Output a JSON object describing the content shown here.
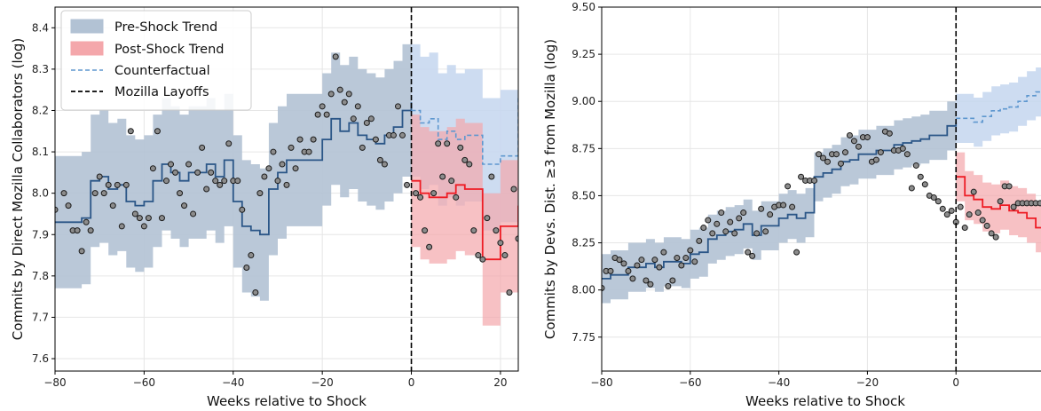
{
  "chart_data": [
    {
      "type": "line",
      "xlabel": "Weeks relative to Shock",
      "ylabel": "Commits by Direct Mozilla Collaborators (log)",
      "xlim": [
        -80,
        24
      ],
      "ylim": [
        7.57,
        8.45
      ],
      "xticks": [
        -80,
        -60,
        -40,
        -20,
        0,
        20
      ],
      "xtick_labels": [
        "−80",
        "−60",
        "−40",
        "−20",
        "0",
        "20"
      ],
      "yticks": [
        7.6,
        7.7,
        7.8,
        7.9,
        8.0,
        8.1,
        8.2,
        8.3,
        8.4
      ],
      "ytick_labels": [
        "7.6",
        "7.7",
        "7.8",
        "7.9",
        "8.0",
        "8.1",
        "8.2",
        "8.3",
        "8.4"
      ],
      "grid": true,
      "legend_position": "top-left",
      "legend": [
        "Pre-Shock Trend",
        "Post-Shock Trend",
        "Counterfactual",
        "Mozilla Layoffs"
      ],
      "shock_week": 0,
      "band_halfwidth": 0.16,
      "pre_trend": {
        "x": [
          -80,
          -78,
          -76,
          -74,
          -72,
          -70,
          -68,
          -66,
          -64,
          -62,
          -60,
          -58,
          -56,
          -54,
          -52,
          -50,
          -48,
          -46,
          -44,
          -42,
          -40,
          -38,
          -36,
          -34,
          -32,
          -30,
          -28,
          -26,
          -24,
          -22,
          -20,
          -18,
          -16,
          -14,
          -12,
          -10,
          -8,
          -6,
          -4,
          -2,
          0
        ],
        "y": [
          7.93,
          7.93,
          7.93,
          7.94,
          8.03,
          8.04,
          8.01,
          8.02,
          7.98,
          7.97,
          7.98,
          8.03,
          8.07,
          8.05,
          8.03,
          8.05,
          8.05,
          8.07,
          8.04,
          8.08,
          7.98,
          7.92,
          7.91,
          7.9,
          8.01,
          8.05,
          8.08,
          8.08,
          8.08,
          8.08,
          8.13,
          8.18,
          8.15,
          8.17,
          8.14,
          8.13,
          8.12,
          8.14,
          8.16,
          8.2,
          8.22
        ]
      },
      "post_trend": {
        "x": [
          0,
          2,
          4,
          6,
          8,
          10,
          12,
          14,
          16,
          18,
          20,
          22,
          24
        ],
        "y": [
          8.03,
          8.0,
          7.99,
          7.99,
          8.0,
          8.02,
          8.01,
          8.01,
          7.84,
          7.84,
          7.92,
          7.92,
          7.97
        ],
        "band_halfwidth": 0.16
      },
      "counterfactual": {
        "x": [
          0,
          2,
          4,
          6,
          8,
          10,
          12,
          14,
          16,
          18,
          20,
          22,
          24
        ],
        "y": [
          8.2,
          8.17,
          8.18,
          8.13,
          8.15,
          8.13,
          8.14,
          8.14,
          8.07,
          8.07,
          8.09,
          8.09,
          8.23
        ]
      },
      "points": {
        "x": [
          -80,
          -78,
          -77,
          -76,
          -75,
          -74,
          -73,
          -72,
          -71,
          -70,
          -69,
          -68,
          -67,
          -66,
          -65,
          -64,
          -63,
          -62,
          -61,
          -60,
          -59,
          -58,
          -57,
          -56,
          -55,
          -54,
          -53,
          -52,
          -51,
          -50,
          -49,
          -48,
          -47,
          -46,
          -45,
          -44,
          -43,
          -42,
          -41,
          -40,
          -39,
          -38,
          -37,
          -36,
          -35,
          -34,
          -33,
          -32,
          -31,
          -30,
          -29,
          -28,
          -27,
          -26,
          -25,
          -24,
          -23,
          -22,
          -21,
          -20,
          -19,
          -18,
          -17,
          -16,
          -15,
          -14,
          -13,
          -12,
          -11,
          -10,
          -9,
          -8,
          -7,
          -6,
          -5,
          -4,
          -3,
          -2,
          -1,
          1,
          2,
          3,
          4,
          5,
          6,
          7,
          8,
          9,
          10,
          11,
          12,
          13,
          14,
          15,
          16,
          17,
          18,
          19,
          20,
          21,
          22,
          23,
          24
        ],
        "y": [
          7.96,
          8.0,
          7.97,
          7.91,
          7.91,
          7.86,
          7.93,
          7.91,
          8.0,
          8.04,
          8.0,
          8.02,
          7.97,
          8.02,
          7.92,
          8.02,
          8.15,
          7.95,
          7.94,
          7.92,
          7.94,
          8.06,
          8.15,
          7.94,
          8.03,
          8.07,
          8.05,
          8.0,
          7.97,
          8.07,
          7.95,
          8.05,
          8.11,
          8.01,
          8.05,
          8.03,
          8.02,
          8.03,
          8.12,
          8.03,
          8.03,
          7.96,
          7.82,
          7.85,
          7.76,
          8.0,
          8.04,
          8.06,
          8.1,
          8.03,
          8.07,
          8.02,
          8.11,
          8.06,
          8.13,
          8.1,
          8.1,
          8.13,
          8.19,
          8.21,
          8.19,
          8.24,
          8.33,
          8.25,
          8.22,
          8.24,
          8.18,
          8.21,
          8.11,
          8.17,
          8.18,
          8.13,
          8.08,
          8.07,
          8.14,
          8.14,
          8.21,
          8.14,
          8.02,
          8.0,
          7.99,
          7.91,
          7.87,
          8.0,
          8.12,
          8.04,
          8.12,
          8.03,
          7.99,
          8.11,
          8.08,
          8.07,
          7.91,
          7.85,
          7.84,
          7.94,
          8.04,
          7.91,
          7.88,
          7.85,
          7.76,
          8.01,
          7.89
        ]
      }
    },
    {
      "type": "line",
      "xlabel": "Weeks relative to Shock",
      "ylabel": "Commits by Devs. Dist. ≥3 from Mozilla (log)",
      "xlim": [
        -80,
        24
      ],
      "ylim": [
        7.57,
        9.5
      ],
      "xticks": [
        -80,
        -60,
        -40,
        -20,
        0,
        20
      ],
      "xtick_labels": [
        "−80",
        "−60",
        "−40",
        "−20",
        "0",
        "20"
      ],
      "yticks": [
        7.75,
        8.0,
        8.25,
        8.5,
        8.75,
        9.0,
        9.25,
        9.5
      ],
      "ytick_labels": [
        "7.75",
        "8.00",
        "8.25",
        "8.50",
        "8.75",
        "9.00",
        "9.25",
        "9.50"
      ],
      "grid": true,
      "shock_week": 0,
      "band_halfwidth": 0.13,
      "pre_trend": {
        "x": [
          -80,
          -78,
          -76,
          -74,
          -72,
          -70,
          -68,
          -66,
          -64,
          -62,
          -60,
          -58,
          -56,
          -54,
          -52,
          -50,
          -48,
          -46,
          -44,
          -42,
          -40,
          -38,
          -36,
          -34,
          -32,
          -30,
          -28,
          -26,
          -24,
          -22,
          -20,
          -18,
          -16,
          -14,
          -12,
          -10,
          -8,
          -6,
          -4,
          -2,
          0
        ],
        "y": [
          8.06,
          8.08,
          8.08,
          8.12,
          8.12,
          8.14,
          8.12,
          8.15,
          8.15,
          8.14,
          8.19,
          8.2,
          8.27,
          8.29,
          8.31,
          8.32,
          8.35,
          8.29,
          8.34,
          8.34,
          8.38,
          8.4,
          8.38,
          8.41,
          8.6,
          8.62,
          8.64,
          8.68,
          8.69,
          8.72,
          8.72,
          8.74,
          8.74,
          8.77,
          8.78,
          8.79,
          8.8,
          8.82,
          8.82,
          8.87,
          8.89
        ]
      },
      "post_trend": {
        "x": [
          0,
          2,
          4,
          6,
          8,
          10,
          12,
          14,
          16,
          18,
          20,
          22,
          24
        ],
        "y": [
          8.6,
          8.5,
          8.48,
          8.44,
          8.43,
          8.45,
          8.42,
          8.41,
          8.38,
          8.33,
          8.47,
          8.45,
          8.48
        ],
        "band_halfwidth": 0.13
      },
      "counterfactual": {
        "x": [
          0,
          2,
          4,
          6,
          8,
          10,
          12,
          14,
          16,
          18,
          20,
          22,
          24
        ],
        "y": [
          8.91,
          8.91,
          8.89,
          8.92,
          8.95,
          8.96,
          8.97,
          9.0,
          9.03,
          9.05,
          9.09,
          9.14,
          9.2
        ]
      },
      "points": {
        "x": [
          -80,
          -79,
          -78,
          -77,
          -76,
          -75,
          -74,
          -73,
          -72,
          -71,
          -70,
          -69,
          -68,
          -67,
          -66,
          -65,
          -64,
          -63,
          -62,
          -61,
          -60,
          -59,
          -58,
          -57,
          -56,
          -55,
          -54,
          -53,
          -52,
          -51,
          -50,
          -49,
          -48,
          -47,
          -46,
          -45,
          -44,
          -43,
          -42,
          -41,
          -40,
          -39,
          -38,
          -37,
          -36,
          -35,
          -34,
          -33,
          -32,
          -31,
          -30,
          -29,
          -28,
          -27,
          -26,
          -25,
          -24,
          -23,
          -22,
          -21,
          -20,
          -19,
          -18,
          -17,
          -16,
          -15,
          -14,
          -13,
          -12,
          -11,
          -10,
          -9,
          -8,
          -7,
          -6,
          -5,
          -4,
          -3,
          -2,
          -1,
          0,
          1,
          2,
          3,
          4,
          5,
          6,
          7,
          8,
          9,
          10,
          11,
          12,
          13,
          14,
          15,
          16,
          17,
          18,
          19,
          20,
          21,
          22,
          23,
          24
        ],
        "y": [
          8.01,
          8.1,
          8.1,
          8.17,
          8.16,
          8.14,
          8.1,
          8.06,
          8.13,
          8.16,
          8.05,
          8.03,
          8.16,
          8.12,
          8.2,
          8.02,
          8.05,
          8.17,
          8.13,
          8.17,
          8.21,
          8.15,
          8.26,
          8.33,
          8.37,
          8.3,
          8.35,
          8.41,
          8.31,
          8.36,
          8.3,
          8.38,
          8.41,
          8.2,
          8.18,
          8.3,
          8.43,
          8.31,
          8.4,
          8.44,
          8.45,
          8.45,
          8.55,
          8.44,
          8.2,
          8.6,
          8.58,
          8.58,
          8.58,
          8.72,
          8.7,
          8.68,
          8.72,
          8.72,
          8.67,
          8.73,
          8.82,
          8.79,
          8.76,
          8.81,
          8.81,
          8.68,
          8.69,
          8.73,
          8.84,
          8.83,
          8.74,
          8.74,
          8.75,
          8.72,
          8.54,
          8.66,
          8.6,
          8.56,
          8.5,
          8.49,
          8.47,
          8.43,
          8.4,
          8.42,
          8.36,
          8.44,
          8.33,
          8.4,
          8.52,
          8.41,
          8.37,
          8.34,
          8.3,
          8.28,
          8.47,
          8.55,
          8.55,
          8.44,
          8.46,
          8.46,
          8.46,
          8.46,
          8.46,
          8.46,
          8.46,
          8.46,
          8.46,
          8.46,
          8.46
        ]
      }
    }
  ],
  "colors": {
    "pre_band": "#b2c2d4",
    "pre_line": "#2b5687",
    "post_band": "#f4a7ab",
    "post_line": "#ee1c24",
    "cf_band": "#c4d6ee",
    "cf_line": "#5e97cf",
    "shock_line": "#000000",
    "grid": "#e6e6e6",
    "point_fill": "#8c8c8c",
    "point_edge": "#1a1a1a"
  }
}
